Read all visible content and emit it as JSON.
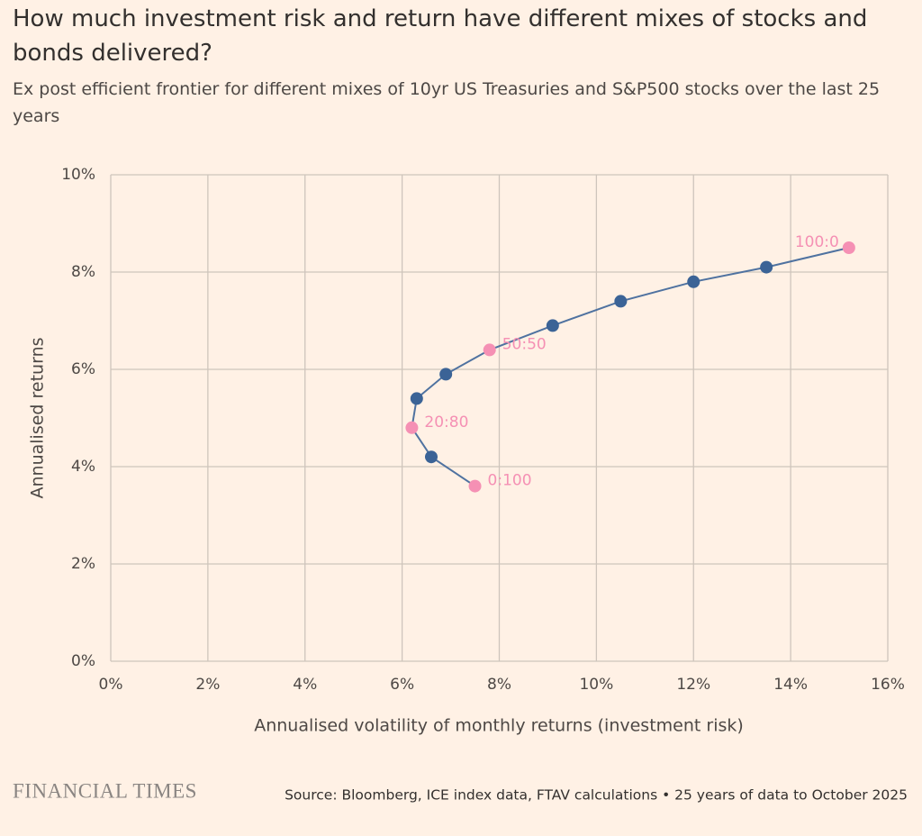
{
  "chart_data": {
    "type": "scatter",
    "title": "How much investment risk and return have different mixes of stocks and bonds delivered?",
    "subtitle": "Ex post efficient frontier for different mixes of 10yr US Treasuries and S&P500 stocks over the last 25 years",
    "x_label": "Annualised volatility of monthly returns (investment risk)",
    "y_label": "Annualised returns",
    "source": "Source: Bloomberg, ICE index data, FTAV calculations • 25 years of data to October 2025",
    "brand": "FINANCIAL TIMES",
    "x": [
      7.5,
      6.6,
      6.2,
      6.3,
      6.9,
      7.8,
      9.1,
      10.5,
      12.0,
      13.5,
      15.2
    ],
    "values": [
      3.6,
      4.2,
      4.8,
      5.4,
      5.9,
      6.4,
      6.9,
      7.4,
      7.8,
      8.1,
      8.5
    ],
    "point_labels": [
      "0:100",
      null,
      "20:80",
      null,
      null,
      "50:50",
      null,
      null,
      null,
      null,
      "100:0"
    ],
    "color": "#3b6396",
    "line_color": "#4f72a0",
    "highlight_color": "#f590b4",
    "xlim": [
      0,
      16
    ],
    "ylim": [
      0,
      10
    ],
    "xticks": [
      {
        "value": 0,
        "label": "0%"
      },
      {
        "value": 2,
        "label": "2%"
      },
      {
        "value": 4,
        "label": "4%"
      },
      {
        "value": 6,
        "label": "6%"
      },
      {
        "value": 8,
        "label": "8%"
      },
      {
        "value": 10,
        "label": "10%"
      },
      {
        "value": 12,
        "label": "12%"
      },
      {
        "value": 14,
        "label": "14%"
      },
      {
        "value": 16,
        "label": "16%"
      }
    ],
    "yticks": [
      {
        "value": 0,
        "label": "0%"
      },
      {
        "value": 2,
        "label": "2%"
      },
      {
        "value": 4,
        "label": "4%"
      },
      {
        "value": 6,
        "label": "6%"
      },
      {
        "value": 8,
        "label": "8%"
      },
      {
        "value": 10,
        "label": "10%"
      }
    ],
    "grid": true
  }
}
